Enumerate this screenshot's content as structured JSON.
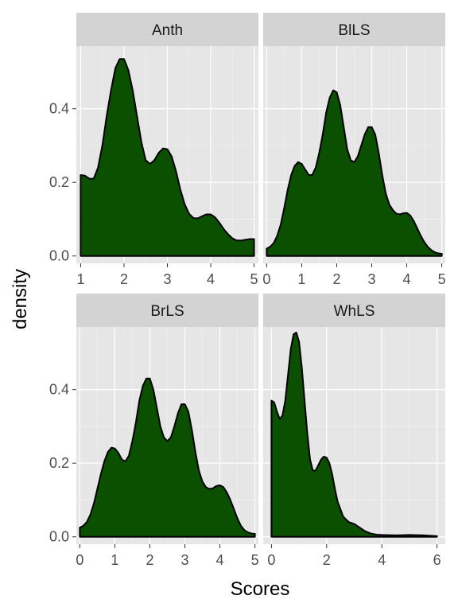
{
  "chart_data": {
    "type": "area",
    "xlabel": "Scores",
    "ylabel": "density",
    "fill_color": "#0b5000",
    "line_color": "#000000",
    "ylim": [
      -0.02,
      0.57
    ],
    "y_ticks": [
      0.0,
      0.2,
      0.4
    ],
    "y_tick_labels": [
      "0.0",
      "0.2",
      "0.4"
    ],
    "facets": [
      {
        "name": "Anth",
        "xlim": [
          0.9,
          5.1
        ],
        "x_ticks": [
          1,
          2,
          3,
          4,
          5
        ],
        "x_tick_labels": [
          "1",
          "2",
          "3",
          "4",
          "5"
        ],
        "x": [
          1.0,
          1.1,
          1.2,
          1.3,
          1.4,
          1.5,
          1.6,
          1.7,
          1.8,
          1.9,
          2.0,
          2.1,
          2.2,
          2.3,
          2.4,
          2.5,
          2.6,
          2.7,
          2.8,
          2.9,
          3.0,
          3.1,
          3.2,
          3.3,
          3.4,
          3.5,
          3.6,
          3.7,
          3.8,
          3.9,
          4.0,
          4.1,
          4.2,
          4.3,
          4.4,
          4.5,
          4.6,
          4.7,
          4.8,
          4.9,
          5.0
        ],
        "y": [
          0.22,
          0.218,
          0.21,
          0.21,
          0.24,
          0.3,
          0.38,
          0.45,
          0.51,
          0.535,
          0.535,
          0.505,
          0.45,
          0.38,
          0.31,
          0.26,
          0.25,
          0.26,
          0.28,
          0.292,
          0.29,
          0.27,
          0.23,
          0.18,
          0.14,
          0.115,
          0.103,
          0.102,
          0.108,
          0.113,
          0.113,
          0.105,
          0.09,
          0.073,
          0.059,
          0.048,
          0.042,
          0.042,
          0.044,
          0.046,
          0.046
        ]
      },
      {
        "name": "BlLS",
        "xlim": [
          -0.1,
          5.1
        ],
        "x_ticks": [
          0,
          1,
          2,
          3,
          4,
          5
        ],
        "x_tick_labels": [
          "0",
          "1",
          "2",
          "3",
          "4",
          "5"
        ],
        "x": [
          0.0,
          0.1,
          0.2,
          0.3,
          0.4,
          0.5,
          0.6,
          0.7,
          0.8,
          0.9,
          1.0,
          1.1,
          1.2,
          1.3,
          1.4,
          1.5,
          1.6,
          1.7,
          1.8,
          1.9,
          2.0,
          2.1,
          2.2,
          2.3,
          2.4,
          2.5,
          2.6,
          2.7,
          2.8,
          2.9,
          3.0,
          3.1,
          3.2,
          3.3,
          3.4,
          3.5,
          3.6,
          3.7,
          3.8,
          3.9,
          4.0,
          4.1,
          4.2,
          4.3,
          4.4,
          4.5,
          4.6,
          4.7,
          4.8,
          4.9,
          5.0
        ],
        "y": [
          0.02,
          0.025,
          0.035,
          0.055,
          0.085,
          0.13,
          0.18,
          0.22,
          0.245,
          0.255,
          0.25,
          0.235,
          0.22,
          0.22,
          0.24,
          0.28,
          0.33,
          0.39,
          0.43,
          0.45,
          0.445,
          0.41,
          0.35,
          0.29,
          0.26,
          0.255,
          0.27,
          0.3,
          0.33,
          0.35,
          0.35,
          0.33,
          0.28,
          0.22,
          0.17,
          0.14,
          0.125,
          0.115,
          0.113,
          0.116,
          0.117,
          0.11,
          0.095,
          0.075,
          0.055,
          0.038,
          0.025,
          0.016,
          0.01,
          0.007,
          0.006
        ]
      },
      {
        "name": "BrLS",
        "xlim": [
          -0.1,
          5.1
        ],
        "x_ticks": [
          0,
          1,
          2,
          3,
          4,
          5
        ],
        "x_tick_labels": [
          "0",
          "1",
          "2",
          "3",
          "4",
          "5"
        ],
        "x": [
          0.0,
          0.1,
          0.2,
          0.3,
          0.4,
          0.5,
          0.6,
          0.7,
          0.8,
          0.9,
          1.0,
          1.1,
          1.2,
          1.3,
          1.4,
          1.5,
          1.6,
          1.7,
          1.8,
          1.9,
          2.0,
          2.1,
          2.2,
          2.3,
          2.4,
          2.5,
          2.6,
          2.7,
          2.8,
          2.9,
          3.0,
          3.1,
          3.2,
          3.3,
          3.4,
          3.5,
          3.6,
          3.7,
          3.8,
          3.9,
          4.0,
          4.1,
          4.2,
          4.3,
          4.4,
          4.5,
          4.6,
          4.7,
          4.8,
          4.9,
          5.0
        ],
        "y": [
          0.025,
          0.03,
          0.04,
          0.06,
          0.09,
          0.13,
          0.17,
          0.205,
          0.23,
          0.242,
          0.24,
          0.228,
          0.21,
          0.205,
          0.22,
          0.26,
          0.31,
          0.37,
          0.41,
          0.43,
          0.43,
          0.4,
          0.35,
          0.3,
          0.27,
          0.26,
          0.27,
          0.3,
          0.335,
          0.36,
          0.36,
          0.34,
          0.29,
          0.23,
          0.18,
          0.15,
          0.135,
          0.13,
          0.132,
          0.138,
          0.14,
          0.135,
          0.12,
          0.1,
          0.075,
          0.05,
          0.03,
          0.018,
          0.012,
          0.009,
          0.008
        ]
      },
      {
        "name": "WhLS",
        "xlim": [
          -0.3,
          6.3
        ],
        "x_ticks": [
          0,
          2,
          4,
          6
        ],
        "x_tick_labels": [
          "0",
          "2",
          "4",
          "6"
        ],
        "x": [
          0.0,
          0.1,
          0.2,
          0.3,
          0.4,
          0.5,
          0.6,
          0.7,
          0.8,
          0.9,
          1.0,
          1.1,
          1.2,
          1.3,
          1.4,
          1.5,
          1.6,
          1.7,
          1.8,
          1.9,
          2.0,
          2.1,
          2.2,
          2.3,
          2.4,
          2.6,
          2.8,
          3.0,
          3.2,
          3.4,
          3.6,
          3.8,
          4.0,
          4.5,
          5.0,
          5.5,
          6.0
        ],
        "y": [
          0.37,
          0.365,
          0.34,
          0.32,
          0.33,
          0.37,
          0.44,
          0.51,
          0.55,
          0.555,
          0.53,
          0.46,
          0.37,
          0.28,
          0.21,
          0.18,
          0.18,
          0.195,
          0.21,
          0.218,
          0.215,
          0.2,
          0.17,
          0.13,
          0.095,
          0.055,
          0.04,
          0.035,
          0.025,
          0.015,
          0.009,
          0.006,
          0.005,
          0.004,
          0.005,
          0.004,
          0.002
        ]
      }
    ]
  }
}
